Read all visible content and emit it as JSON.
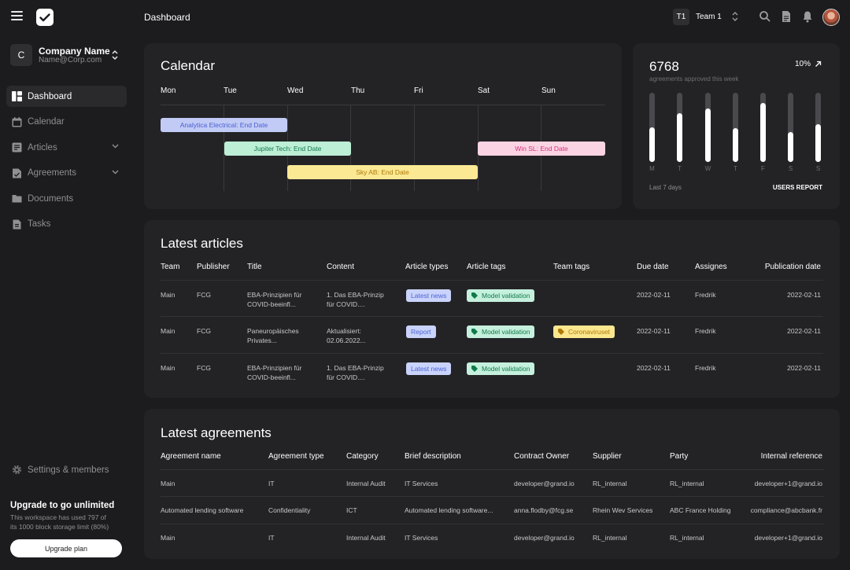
{
  "header": {
    "title": "Dashboard",
    "team_badge": "T1",
    "team_name": "Team 1"
  },
  "company": {
    "initial": "C",
    "name": "Company Name",
    "email": "Name@Corp.com"
  },
  "sidebar": {
    "items": [
      {
        "label": "Dashboard",
        "icon": "dashboard-icon",
        "active": true
      },
      {
        "label": "Calendar",
        "icon": "calendar-icon"
      },
      {
        "label": "Articles",
        "icon": "articles-icon",
        "expandable": true
      },
      {
        "label": "Agreements",
        "icon": "agreements-icon",
        "expandable": true
      },
      {
        "label": "Documents",
        "icon": "folder-icon"
      },
      {
        "label": "Tasks",
        "icon": "tasks-icon"
      }
    ],
    "settings": "Settings & members",
    "upgrade": {
      "title": "Upgrade to go unlimited",
      "desc_line1": "This workspace has used 797 of",
      "desc_line2": "its 1000 block storage limit (80%)",
      "button": "Upgrade plan"
    }
  },
  "calendar": {
    "title": "Calendar",
    "days": [
      "Mon",
      "Tue",
      "Wed",
      "Thu",
      "Fri",
      "Sat",
      "Sun"
    ],
    "events": [
      {
        "label": "Analytica Electrical: End Date",
        "bg": "#c2cbf6",
        "fg": "#4a5fd0"
      },
      {
        "label": "Jupiter Tech: End Date",
        "bg": "#bdeed6",
        "fg": "#127a4a"
      },
      {
        "label": "Win SL: End Date",
        "bg": "#fbd4e4",
        "fg": "#d4337a"
      },
      {
        "label": "Sky AB: End Date",
        "bg": "#fbe994",
        "fg": "#b07a06"
      }
    ]
  },
  "stats": {
    "value": "6768",
    "subtitle": "agreements approved this week",
    "change": "10%",
    "days": [
      "M",
      "T",
      "W",
      "T",
      "F",
      "S",
      "S"
    ],
    "levels": [
      0.5,
      0.7,
      0.77,
      0.49,
      0.85,
      0.43,
      0.55
    ],
    "footer_left": "Last 7 days",
    "footer_right": "USERS REPORT"
  },
  "articles": {
    "title": "Latest articles",
    "columns": [
      "Team",
      "Publisher",
      "Title",
      "Content",
      "Article types",
      "Article tags",
      "Team tags",
      "Due date",
      "Assignes",
      "Publication date"
    ],
    "rows": [
      {
        "team": "Main",
        "publisher": "FCG",
        "title1": "EBA-Prinzipien für",
        "title2": "COVID-beeinfl...",
        "content1": "1. Das EBA-Prinzip",
        "content2": "für COVID....",
        "type": "Latest news",
        "tag": "Model validation",
        "team_tag": "",
        "due": "2022-02-11",
        "assignee": "Fredrik",
        "pub": "2022-02-11"
      },
      {
        "team": "Main",
        "publisher": "FCG",
        "title1": "Paneuropäisches",
        "title2": "Privates...",
        "content1": "Aktualisiert:",
        "content2": "02.06.2022...",
        "type": "Report",
        "tag": "Model validation",
        "team_tag": "Coronaviruset",
        "due": "2022-02-11",
        "assignee": "Fredrik",
        "pub": "2022-02-11"
      },
      {
        "team": "Main",
        "publisher": "FCG",
        "title1": "EBA-Prinzipien für",
        "title2": "COVID-beeinfl...",
        "content1": "1. Das EBA-Prinzip",
        "content2": "für COVID....",
        "type": "Latest news",
        "tag": "Model validation",
        "team_tag": "",
        "due": "2022-02-11",
        "assignee": "Fredrik",
        "pub": "2022-02-11"
      }
    ]
  },
  "agreements": {
    "title": "Latest agreements",
    "columns": [
      "Agreement name",
      "Agreement type",
      "Category",
      "Brief description",
      "Contract Owner",
      "Supplier",
      "Party",
      "Internal reference"
    ],
    "rows": [
      {
        "name": "Main",
        "type": "IT",
        "category": "Internal Audit",
        "desc": "IT Services",
        "owner": "developer@grand.io",
        "supplier": "RL_internal",
        "party": "RL_internal",
        "ref": "developer+1@grand.io"
      },
      {
        "name": "Automated lending software",
        "type": "Confidentiality",
        "category": "ICT",
        "desc": "Automated lending software...",
        "owner": "anna.flodby@fcg.se",
        "supplier": "Rhein Wev Services",
        "party": "ABC France Holding",
        "ref": "compliance@abcbank.fr"
      },
      {
        "name": "Main",
        "type": "IT",
        "category": "Internal Audit",
        "desc": "IT Services",
        "owner": "developer@grand.io",
        "supplier": "RL_internal",
        "party": "RL_internal",
        "ref": "developer+1@grand.io"
      }
    ]
  }
}
